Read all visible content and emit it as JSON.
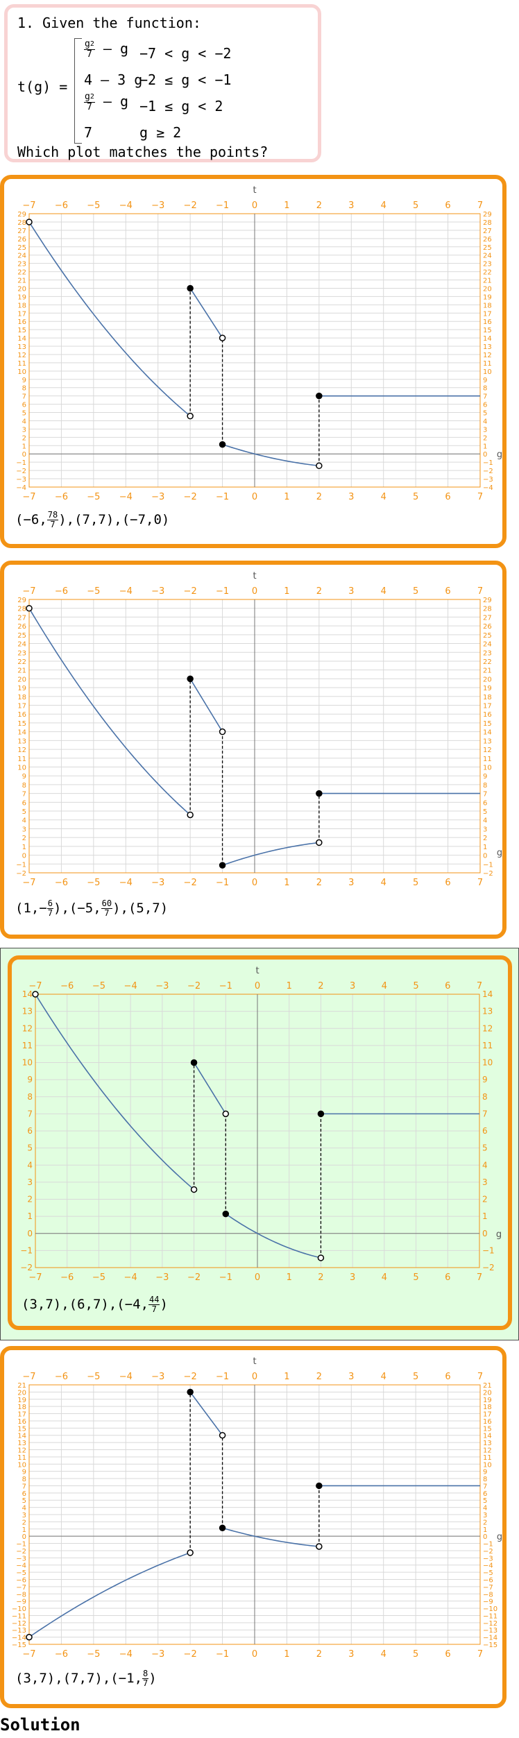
{
  "question": {
    "title": "1. Given the function:",
    "func_name": "t(g) =",
    "pieces": [
      {
        "expr_num": "g2",
        "expr_rest": "– g",
        "cond": "−7 < g < −2",
        "frac": true
      },
      {
        "expr": "4 – 3 g",
        "cond": "−2 ≤ g < −1",
        "frac": false
      },
      {
        "expr_num": "g2",
        "expr_rest": "– g",
        "cond": "−1 ≤ g < 2",
        "frac": true
      },
      {
        "expr": "7",
        "cond": "g ≥ 2",
        "frac": false
      }
    ],
    "frac_den": "7",
    "ask": "Which plot matches the points?"
  },
  "axis_labels": {
    "top": "t",
    "right": "g"
  },
  "options": [
    {
      "points_parts": [
        "(−6,",
        "78",
        "7",
        "),(7,7),(−7,0)"
      ],
      "chart_data": {
        "type": "line",
        "xlim": [
          -7,
          7
        ],
        "ylim": [
          -4,
          29
        ],
        "x_ticks": [
          -7,
          -6,
          -5,
          -4,
          -3,
          -2,
          -1,
          0,
          1,
          2,
          3,
          4,
          5,
          6,
          7
        ],
        "y_ticks": [
          -4,
          -3,
          -2,
          -1,
          0,
          1,
          2,
          3,
          4,
          5,
          6,
          7,
          8,
          9,
          10,
          11,
          12,
          13,
          14,
          15,
          16,
          17,
          18,
          19,
          20,
          21,
          22,
          23,
          24,
          25,
          26,
          27,
          28,
          29
        ],
        "segments": [
          {
            "fn": "g2/7-g",
            "from": -7,
            "to": -2
          },
          {
            "fn": "4-3g",
            "from": -2,
            "to": -1
          },
          {
            "fn": "g2/7-g",
            "from": -1,
            "to": 2
          },
          {
            "fn": "7",
            "from": 2,
            "to": 7
          }
        ],
        "points": [
          {
            "x": -7,
            "y": 28,
            "open": true
          },
          {
            "x": -2,
            "y": 20,
            "open": false
          },
          {
            "x": -2,
            "y": 4.571,
            "open": true
          },
          {
            "x": -1,
            "y": 14,
            "open": true
          },
          {
            "x": -1,
            "y": 1.143,
            "open": false
          },
          {
            "x": 2,
            "y": 7,
            "open": false
          },
          {
            "x": 2,
            "y": -1.429,
            "open": true
          }
        ],
        "jumps": [
          [
            -2,
            4.571,
            20
          ],
          [
            -1,
            1.143,
            14
          ],
          [
            2,
            -1.429,
            7
          ]
        ],
        "show_x_axis": true
      }
    },
    {
      "points_parts": [
        "(1,−",
        "6",
        "7",
        "),(−5,",
        "60",
        "7",
        "),(5,7)"
      ],
      "chart_data": {
        "type": "line",
        "xlim": [
          -7,
          7
        ],
        "ylim": [
          -2,
          29
        ],
        "x_ticks": [
          -7,
          -6,
          -5,
          -4,
          -3,
          -2,
          -1,
          0,
          1,
          2,
          3,
          4,
          5,
          6,
          7
        ],
        "y_ticks": [
          -2,
          -1,
          0,
          1,
          2,
          3,
          4,
          5,
          6,
          7,
          8,
          9,
          10,
          11,
          12,
          13,
          14,
          15,
          16,
          17,
          18,
          19,
          20,
          21,
          22,
          23,
          24,
          25,
          26,
          27,
          28,
          29
        ],
        "segments": [
          {
            "fn": "g2/7-g",
            "from": -7,
            "to": -2
          },
          {
            "fn": "4-3g",
            "from": -2,
            "to": -1
          },
          {
            "fn": "-(g2/7-g)",
            "from": -1,
            "to": 2
          },
          {
            "fn": "7",
            "from": 2,
            "to": 7
          }
        ],
        "points": [
          {
            "x": -7,
            "y": 28,
            "open": true
          },
          {
            "x": -2,
            "y": 20,
            "open": false
          },
          {
            "x": -2,
            "y": 4.571,
            "open": true
          },
          {
            "x": -1,
            "y": 14,
            "open": true
          },
          {
            "x": -1,
            "y": -1.143,
            "open": false
          },
          {
            "x": 2,
            "y": 7,
            "open": false
          },
          {
            "x": 2,
            "y": 1.429,
            "open": true
          }
        ],
        "jumps": [
          [
            -2,
            4.571,
            20
          ],
          [
            -1,
            -1.143,
            14
          ],
          [
            2,
            1.429,
            7
          ]
        ],
        "show_x_axis": false
      }
    },
    {
      "points_parts": [
        "(3,7),(6,7),(−4,",
        "44",
        "7",
        ")"
      ],
      "chart_data": {
        "type": "line",
        "xlim": [
          -7,
          7
        ],
        "ylim": [
          -2,
          14
        ],
        "x_ticks": [
          -7,
          -6,
          -5,
          -4,
          -3,
          -2,
          -1,
          0,
          1,
          2,
          3,
          4,
          5,
          6,
          7
        ],
        "y_ticks": [
          -2,
          -1,
          0,
          1,
          2,
          3,
          4,
          5,
          6,
          7,
          8,
          9,
          10,
          11,
          12,
          13,
          14
        ],
        "segments": [
          {
            "fn": "(g2/7-g)/2",
            "from": -7,
            "to": -2
          },
          {
            "fn": "(4-3g)/2",
            "from": -2,
            "to": -1
          },
          {
            "fn": "(g2/7-g)",
            "from": -1,
            "to": 2
          },
          {
            "fn": "7",
            "from": 2,
            "to": 7
          }
        ],
        "points": [
          {
            "x": -7,
            "y": 14,
            "open": true
          },
          {
            "x": -2,
            "y": 10,
            "open": false
          },
          {
            "x": -2,
            "y": 2.571,
            "open": true
          },
          {
            "x": -1,
            "y": 7,
            "open": true
          },
          {
            "x": -1,
            "y": 1.143,
            "open": false
          },
          {
            "x": 2,
            "y": 7,
            "open": false
          },
          {
            "x": 2,
            "y": -1.429,
            "open": true
          }
        ],
        "jumps": [
          [
            -2,
            2.571,
            10
          ],
          [
            -1,
            1.143,
            7
          ],
          [
            2,
            -1.429,
            7
          ]
        ],
        "show_x_axis": true
      }
    },
    {
      "points_parts": [
        "(3,7),(7,7),(−1,",
        "8",
        "7",
        ")"
      ],
      "chart_data": {
        "type": "line",
        "xlim": [
          -7,
          7
        ],
        "ylim": [
          -15,
          21
        ],
        "x_ticks": [
          -7,
          -6,
          -5,
          -4,
          -3,
          -2,
          -1,
          0,
          1,
          2,
          3,
          4,
          5,
          6,
          7
        ],
        "y_ticks": [
          -15,
          -14,
          -13,
          -12,
          -11,
          -10,
          -9,
          -8,
          -7,
          -6,
          -5,
          -4,
          -3,
          -2,
          -1,
          0,
          1,
          2,
          3,
          4,
          5,
          6,
          7,
          8,
          9,
          10,
          11,
          12,
          13,
          14,
          15,
          16,
          17,
          18,
          19,
          20,
          21
        ],
        "segments": [
          {
            "fn": "-(g2/7-g)/2",
            "from": -7,
            "to": -2
          },
          {
            "fn": "4-3g",
            "from": -2,
            "to": -1
          },
          {
            "fn": "g2/7-g",
            "from": -1,
            "to": 2
          },
          {
            "fn": "7",
            "from": 2,
            "to": 7
          }
        ],
        "points": [
          {
            "x": -7,
            "y": -14,
            "open": true
          },
          {
            "x": -2,
            "y": 20,
            "open": false
          },
          {
            "x": -2,
            "y": -2.286,
            "open": true
          },
          {
            "x": -1,
            "y": 14,
            "open": true
          },
          {
            "x": -1,
            "y": 1.143,
            "open": false
          },
          {
            "x": 2,
            "y": 7,
            "open": false
          },
          {
            "x": 2,
            "y": -1.429,
            "open": true
          }
        ],
        "jumps": [
          [
            -2,
            -2.286,
            20
          ],
          [
            -1,
            1.143,
            14
          ],
          [
            2,
            -1.429,
            7
          ]
        ],
        "show_x_axis": true
      }
    }
  ],
  "solution_label": "Solution",
  "colors": {
    "accent": "#f39314",
    "curve": "#4a72a8",
    "grid": "#d9d9d9",
    "correct_bg": "#e1fee0"
  }
}
